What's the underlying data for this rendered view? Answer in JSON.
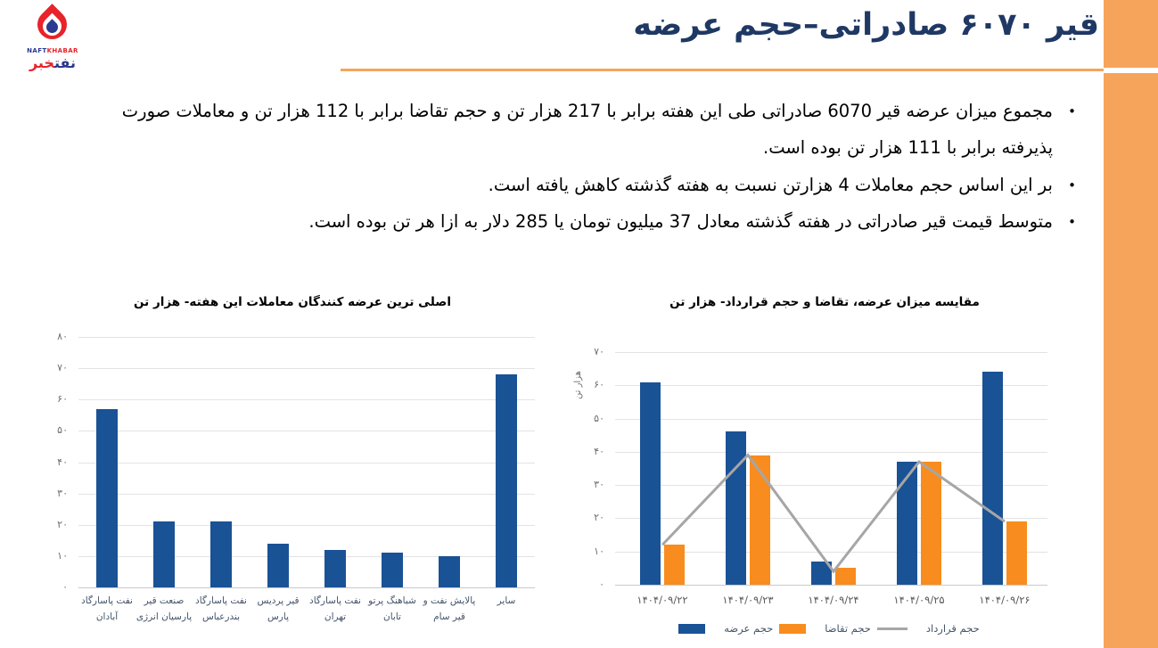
{
  "page_title": "قیر ۶۰۷۰ صادراتی–حجم عرضه",
  "logo": {
    "en_blue": "NAFT",
    "en_red": "KHABAR",
    "fa_blue": "نفت",
    "fa_red": "خبر"
  },
  "bullets": [
    "مجموع میزان عرضه قیر 6070 صادراتی طی این هفته برابر با 217 هزار تن و حجم تقاضا برابر با 112 هزار تن و معاملات صورت پذیرفته برابر با 111 هزار تن بوده است.",
    "بر این اساس حجم معاملات 4 هزارتن نسبت به هفته گذشته کاهش یافته است.",
    "متوسط قیمت قیر صادراتی در هفته گذشته معادل 37 میلیون تومان یا 285 دلار به ازا هر تن بوده است."
  ],
  "colors": {
    "accent_orange": "#F6A45C",
    "title_navy": "#1F3864",
    "bar_blue": "#1A5296",
    "bar_orange": "#F88C1E",
    "line_gray": "#A6A6A6",
    "grid": "#E3E3E3",
    "axis": "#C9C9C9",
    "tick_text": "#6E6E6E",
    "xlabel_text": "#44546A",
    "date_text": "#595959"
  },
  "chart_data": [
    {
      "type": "bar",
      "title": "اصلی ترین عرضه کنندگان معاملات این هفته- هزار تن",
      "categories": [
        "نفت پاسارگاد\nآبادان",
        "صنعت قیر\nپارسیان انرژی",
        "نفت پاسارگاد\nبندرعباس",
        "قیر پردیس\nپارس",
        "نفت پاسارگاد\nتهران",
        "شباهنگ پرتو\nتابان",
        "پالایش نفت و\nقیر سام",
        "سایر"
      ],
      "values": [
        57,
        21,
        21,
        14,
        12,
        11,
        10,
        68
      ],
      "bar_color": "#1A5296",
      "ylim": [
        0,
        80
      ],
      "ytick_step": 10,
      "ytick_labels": [
        "۰",
        "۱۰",
        "۲۰",
        "۳۰",
        "۴۰",
        "۵۰",
        "۶۰",
        "۷۰",
        "۸۰"
      ],
      "grid": true,
      "legend": false
    },
    {
      "type": "bar+line",
      "title": "مقایسه میزان عرضه، تقاضا و حجم قرارداد-  هزار تن",
      "ylabel": "هزار تن",
      "categories": [
        "۱۴۰۴/۰۹/۲۲",
        "۱۴۰۴/۰۹/۲۳",
        "۱۴۰۴/۰۹/۲۴",
        "۱۴۰۴/۰۹/۲۵",
        "۱۴۰۴/۰۹/۲۶"
      ],
      "series": [
        {
          "name": "حجم عرضه",
          "type": "bar",
          "color": "#1A5296",
          "values": [
            61,
            46,
            7,
            37,
            64
          ]
        },
        {
          "name": "حجم تقاضا",
          "type": "bar",
          "color": "#F88C1E",
          "values": [
            12,
            39,
            5,
            37,
            19
          ]
        },
        {
          "name": "حجم قرارداد",
          "type": "line",
          "color": "#A6A6A6",
          "values": [
            12,
            39,
            4,
            37,
            19
          ]
        }
      ],
      "ylim": [
        0,
        70
      ],
      "ytick_step": 10,
      "ytick_labels": [
        "۰",
        "۱۰",
        "۲۰",
        "۳۰",
        "۴۰",
        "۵۰",
        "۶۰",
        "۷۰"
      ],
      "grid": true,
      "legend_position": "bottom"
    }
  ]
}
